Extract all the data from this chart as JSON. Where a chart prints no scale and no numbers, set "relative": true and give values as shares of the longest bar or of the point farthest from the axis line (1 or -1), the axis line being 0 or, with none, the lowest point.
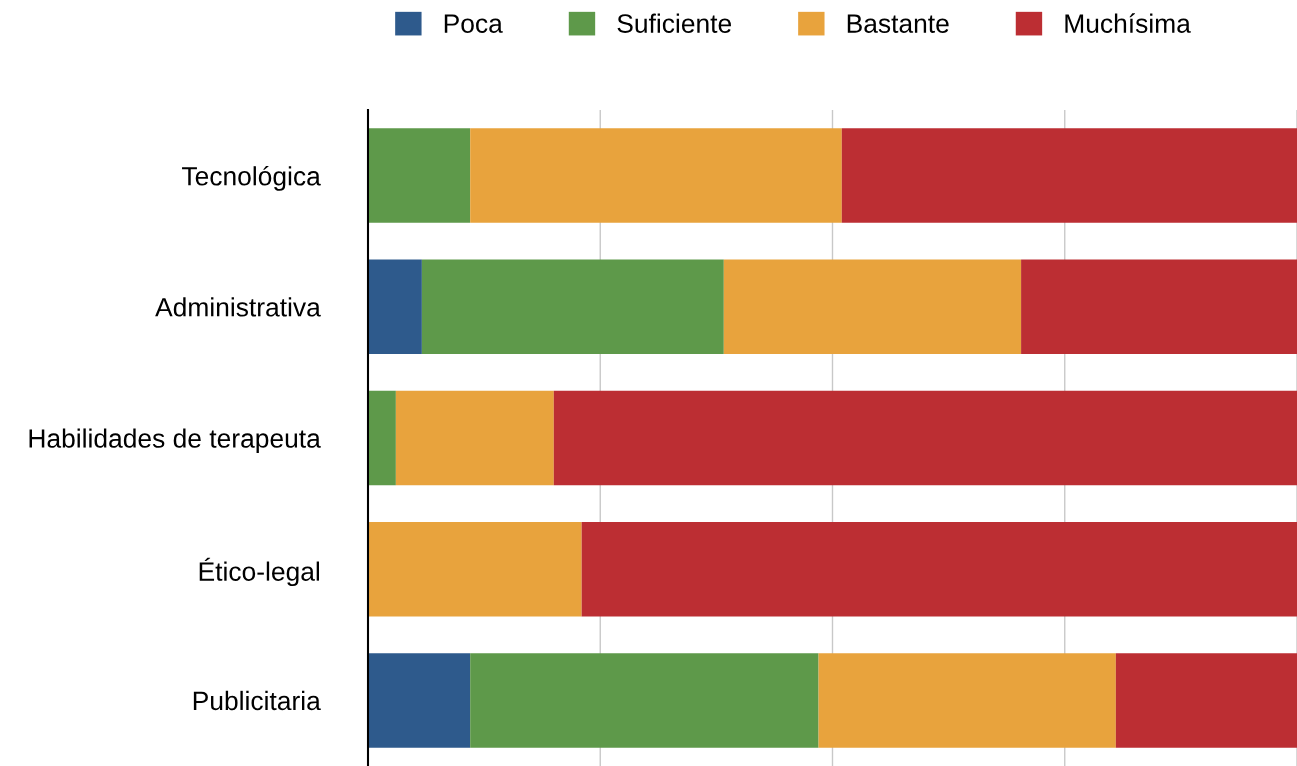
{
  "chart_data": {
    "type": "bar",
    "orientation": "horizontal",
    "stacked": true,
    "relative": true,
    "grid": "x",
    "legend": "top",
    "categories": [
      "Tecnológica",
      "Administrativa",
      "Habilidades de terapeuta",
      "Ético-legal",
      "Publicitaria"
    ],
    "series": [
      {
        "name": "Poca",
        "color": "#2e5a8c",
        "values": [
          0,
          0.058,
          0,
          0,
          0.11
        ]
      },
      {
        "name": "Suficiente",
        "color": "#5e994a",
        "values": [
          0.11,
          0.325,
          0.03,
          0,
          0.375
        ]
      },
      {
        "name": "Bastante",
        "color": "#e8a33d",
        "values": [
          0.4,
          0.32,
          0.17,
          0.23,
          0.32
        ]
      },
      {
        "name": "Muchísima",
        "color": "#bc2e33",
        "values": [
          0.49,
          0.297,
          0.8,
          0.77,
          0.195
        ]
      }
    ]
  }
}
